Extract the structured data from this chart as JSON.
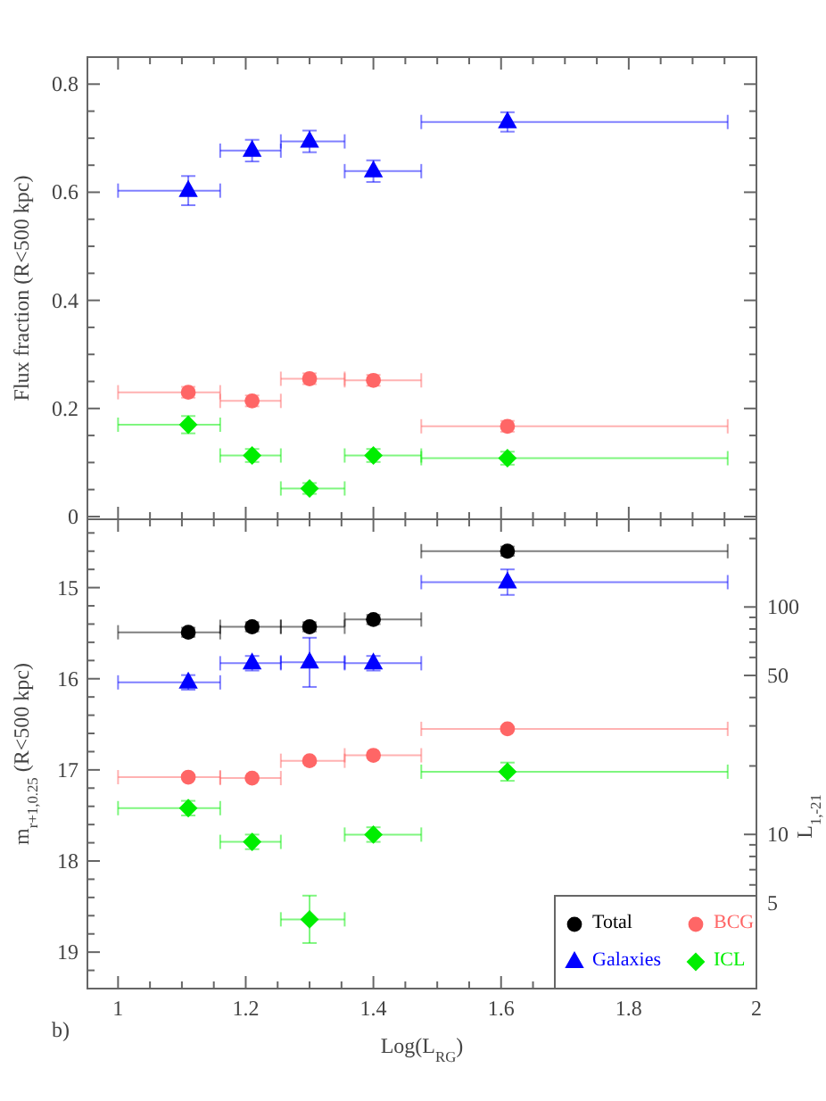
{
  "chart_data": [
    {
      "type": "scatter",
      "ylabel": "Flux fraction (R<500 kpc)",
      "xlim": [
        0.952,
        2
      ],
      "xticks": [
        1,
        {
          "value": 1.05,
          "label": null
        },
        1.2,
        {
          "value": 1.1,
          "label": null
        },
        {
          "value": 1.15,
          "label": null
        },
        {
          "value": 1.25,
          "label": null
        },
        1.4,
        {
          "value": 1.3,
          "label": null
        },
        {
          "value": 1.35,
          "label": null
        },
        {
          "value": 1.45,
          "label": null
        },
        1.6,
        {
          "value": 1.5,
          "label": null
        },
        {
          "value": 1.55,
          "label": null
        },
        {
          "value": 1.65,
          "label": null
        },
        1.8,
        {
          "value": 1.7,
          "label": null
        },
        {
          "value": 1.75,
          "label": null
        },
        {
          "value": 1.85,
          "label": null
        },
        {
          "value": 1.9,
          "label": null
        },
        {
          "value": 1.95,
          "label": null
        },
        2
      ],
      "ylim": [
        -0.005,
        0.85
      ],
      "yticks": [
        0,
        {
          "value": 0.05,
          "label": null
        },
        {
          "value": 0.1,
          "label": null
        },
        {
          "value": 0.15,
          "label": null
        },
        0.2,
        {
          "value": 0.25,
          "label": null
        },
        {
          "value": 0.3,
          "label": null
        },
        {
          "value": 0.35,
          "label": null
        },
        0.4,
        {
          "value": 0.45,
          "label": null
        },
        {
          "value": 0.5,
          "label": null
        },
        {
          "value": 0.55,
          "label": null
        },
        0.6,
        {
          "value": 0.65,
          "label": null
        },
        {
          "value": 0.7,
          "label": null
        },
        {
          "value": 0.75,
          "label": null
        },
        0.8
      ],
      "tick_labels": "y",
      "legend": false,
      "grid": false,
      "x": [
        1.11,
        1.21,
        1.3,
        1.4,
        1.61
      ],
      "series": [
        {
          "color": "#0000ff",
          "marker": "triangle",
          "values": [
            0.603,
            0.677,
            0.694,
            0.639,
            0.73
          ],
          "errors": [
            0.027,
            0.02,
            0.02,
            0.02,
            0.018
          ],
          "xerrors": [
            [
              1.0,
              1.16
            ],
            [
              1.16,
              1.255
            ],
            [
              1.255,
              1.355
            ],
            [
              1.355,
              1.475
            ],
            [
              1.475,
              1.955
            ]
          ]
        },
        {
          "color": "#ff6666",
          "marker": "circle",
          "values": [
            0.23,
            0.214,
            0.255,
            0.252,
            0.167
          ],
          "errors": [
            0.01,
            0.01,
            0.01,
            0.01,
            0.01
          ],
          "xerrors": [
            [
              1.0,
              1.16
            ],
            [
              1.16,
              1.255
            ],
            [
              1.255,
              1.355
            ],
            [
              1.355,
              1.475
            ],
            [
              1.475,
              1.955
            ]
          ]
        },
        {
          "color": "#00ee00",
          "marker": "diamond",
          "values": [
            0.17,
            0.113,
            0.052,
            0.113,
            0.108
          ],
          "errors": [
            0.016,
            0.012,
            0.01,
            0.012,
            0.012
          ],
          "xerrors": [
            [
              1.0,
              1.16
            ],
            [
              1.16,
              1.255
            ],
            [
              1.255,
              1.355
            ],
            [
              1.355,
              1.475
            ],
            [
              1.475,
              1.955
            ]
          ]
        }
      ]
    },
    {
      "type": "scatter",
      "xlabel": "Log(L$_{RG}$)",
      "ylabel": "m$_{r+1,0.25}$ (R<500 kpc)",
      "y2label": "L$_{1,-21}$",
      "annotations": [
        "b)"
      ],
      "log": "y2",
      "xlim": [
        0.952,
        2
      ],
      "xticks": [
        1,
        {
          "value": 1.05,
          "label": null
        },
        1.2,
        {
          "value": 1.1,
          "label": null
        },
        {
          "value": 1.15,
          "label": null
        },
        {
          "value": 1.25,
          "label": null
        },
        1.4,
        {
          "value": 1.3,
          "label": null
        },
        {
          "value": 1.35,
          "label": null
        },
        {
          "value": 1.45,
          "label": null
        },
        1.6,
        {
          "value": 1.5,
          "label": null
        },
        {
          "value": 1.55,
          "label": null
        },
        {
          "value": 1.65,
          "label": null
        },
        1.8,
        {
          "value": 1.7,
          "label": null
        },
        {
          "value": 1.75,
          "label": null
        },
        {
          "value": 1.85,
          "label": null
        },
        {
          "value": 1.9,
          "label": null
        },
        {
          "value": 1.95,
          "label": null
        },
        2
      ],
      "ylim": [
        19.4,
        14.25
      ],
      "yticks": [
        15,
        {
          "value": 15.2,
          "label": null
        },
        {
          "value": 15.4,
          "label": null
        },
        {
          "value": 15.6,
          "label": null
        },
        {
          "value": 15.8,
          "label": null
        },
        16,
        {
          "value": 16.2,
          "label": null
        },
        {
          "value": 16.4,
          "label": null
        },
        {
          "value": 16.6,
          "label": null
        },
        {
          "value": 16.8,
          "label": null
        },
        17,
        {
          "value": 17.2,
          "label": null
        },
        {
          "value": 17.4,
          "label": null
        },
        {
          "value": 17.6,
          "label": null
        },
        {
          "value": 17.8,
          "label": null
        },
        18,
        {
          "value": 18.2,
          "label": null
        },
        {
          "value": 18.4,
          "label": null
        },
        {
          "value": 18.6,
          "label": null
        },
        {
          "value": 18.8,
          "label": null
        },
        19,
        {
          "value": 19.2,
          "label": null
        },
        {
          "value": 14.4,
          "label": null
        },
        {
          "value": 14.6,
          "label": null
        },
        {
          "value": 14.8,
          "label": null
        }
      ],
      "y2lim": [
        2.1,
        243
      ],
      "y2ticks": [
        5,
        10,
        50,
        100,
        {
          "value": 3,
          "label": null
        },
        {
          "value": 4,
          "label": null
        },
        {
          "value": 6,
          "label": null
        },
        {
          "value": 7,
          "label": null
        },
        {
          "value": 8,
          "label": null
        },
        {
          "value": 9,
          "label": null
        },
        {
          "value": 20,
          "label": null
        },
        {
          "value": 30,
          "label": null
        },
        {
          "value": 40,
          "label": null
        },
        {
          "value": 60,
          "label": null
        },
        {
          "value": 70,
          "label": null
        },
        {
          "value": 80,
          "label": null
        },
        {
          "value": 90,
          "label": null
        },
        {
          "value": 200,
          "label": null
        }
      ],
      "legend": "bottom right",
      "grid": false,
      "x": [
        1.11,
        1.21,
        1.3,
        1.4,
        1.61
      ],
      "series": [
        {
          "name": "Total",
          "color": "#000000",
          "marker": "circle",
          "values": [
            15.49,
            15.43,
            15.43,
            15.35,
            14.6
          ],
          "errors": [
            0.05,
            0.05,
            0.05,
            0.05,
            0.05
          ],
          "xerrors": [
            [
              1.0,
              1.16
            ],
            [
              1.16,
              1.255
            ],
            [
              1.255,
              1.355
            ],
            [
              1.355,
              1.475
            ],
            [
              1.475,
              1.955
            ]
          ]
        },
        {
          "name": "Galaxies",
          "color": "#0000ff",
          "marker": "triangle",
          "values": [
            16.04,
            15.83,
            15.82,
            15.83,
            14.94
          ],
          "errors": [
            0.08,
            0.08,
            0.27,
            0.08,
            0.14
          ],
          "xerrors": [
            [
              1.0,
              1.16
            ],
            [
              1.16,
              1.255
            ],
            [
              1.255,
              1.355
            ],
            [
              1.355,
              1.475
            ],
            [
              1.475,
              1.955
            ]
          ]
        },
        {
          "name": "BCG",
          "color": "#ff6666",
          "marker": "circle",
          "values": [
            17.08,
            17.09,
            16.9,
            16.84,
            16.55
          ],
          "xerrors": [
            [
              1.0,
              1.16
            ],
            [
              1.16,
              1.255
            ],
            [
              1.255,
              1.355
            ],
            [
              1.355,
              1.475
            ],
            [
              1.475,
              1.955
            ]
          ]
        },
        {
          "name": "ICL",
          "color": "#00ee00",
          "marker": "diamond",
          "values": [
            17.42,
            17.79,
            18.64,
            17.71,
            17.02
          ],
          "errors": [
            0.08,
            0.08,
            0.26,
            0.08,
            0.1
          ],
          "xerrors": [
            [
              1.0,
              1.16
            ],
            [
              1.16,
              1.255
            ],
            [
              1.255,
              1.355
            ],
            [
              1.355,
              1.475
            ],
            [
              1.475,
              1.955
            ]
          ]
        }
      ]
    }
  ]
}
